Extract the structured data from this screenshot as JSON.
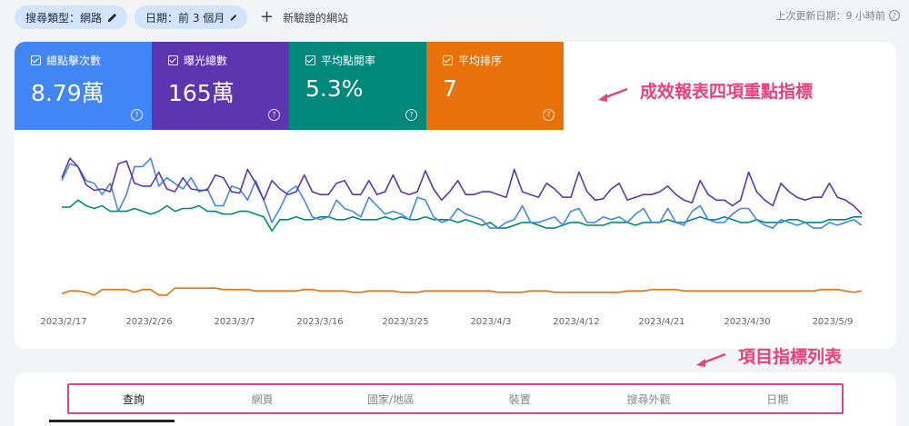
{
  "filters": {
    "search_type": "搜尋類型：網路",
    "date_range": "日期：前 3 個月",
    "add_filter": "新驗證的網站",
    "last_updated": "上次更新日期：9 小時前"
  },
  "metrics": [
    {
      "label": "總點擊次數",
      "value": "8.79萬",
      "color": "#4285f4"
    },
    {
      "label": "曝光總數",
      "value": "165萬",
      "color": "#5e35b1"
    },
    {
      "label": "平均點閱率",
      "value": "5.3%",
      "color": "#00897b"
    },
    {
      "label": "平均排序",
      "value": "7",
      "color": "#e8710a"
    }
  ],
  "annotations": {
    "metrics_note": "成效報表四項重點指標",
    "tabs_note": "項目指標列表"
  },
  "tabs": [
    "查詢",
    "網頁",
    "國家/地區",
    "裝置",
    "搜尋外觀",
    "日期"
  ],
  "active_tab": "查詢",
  "chart_data": {
    "type": "line",
    "x_tick_labels": [
      "2023/2/17",
      "2023/2/26",
      "2023/3/7",
      "2023/3/16",
      "2023/3/25",
      "2023/4/3",
      "2023/4/12",
      "2023/4/21",
      "2023/4/30",
      "2023/5/9"
    ],
    "grid": false,
    "series": [
      {
        "metric": "impressions",
        "color": "#5e35b1",
        "values": [
          72,
          86,
          80,
          67,
          63,
          64,
          62,
          82,
          84,
          68,
          66,
          66,
          76,
          64,
          62,
          72,
          64,
          63,
          63,
          74,
          72,
          62,
          61,
          78,
          68,
          56,
          70,
          64,
          60,
          62,
          74,
          62,
          60,
          60,
          68,
          70,
          60,
          60,
          70,
          60,
          62,
          74,
          62,
          60,
          62,
          77,
          64,
          56,
          62,
          70,
          60,
          60,
          62,
          62,
          60,
          58,
          78,
          62,
          60,
          58,
          68,
          64,
          58,
          58,
          76,
          62,
          56,
          57,
          64,
          68,
          56,
          58,
          60,
          60,
          62,
          66,
          60,
          56,
          54,
          70,
          60,
          56,
          56,
          52,
          56,
          76,
          62,
          56,
          52,
          68,
          62,
          58,
          56,
          58,
          58,
          68,
          58,
          56,
          52,
          46
        ]
      },
      {
        "metric": "clicks",
        "color": "#4285f4",
        "values": [
          70,
          82,
          80,
          70,
          68,
          60,
          68,
          48,
          60,
          80,
          80,
          86,
          66,
          72,
          68,
          64,
          72,
          62,
          64,
          52,
          52,
          66,
          64,
          56,
          70,
          56,
          40,
          50,
          62,
          66,
          56,
          44,
          42,
          44,
          56,
          50,
          48,
          44,
          58,
          52,
          46,
          48,
          46,
          42,
          58,
          56,
          44,
          40,
          42,
          50,
          46,
          44,
          42,
          36,
          36,
          40,
          42,
          52,
          40,
          40,
          42,
          44,
          38,
          48,
          50,
          40,
          40,
          44,
          42,
          44,
          40,
          46,
          50,
          40,
          40,
          50,
          40,
          38,
          48,
          52,
          42,
          40,
          40,
          46,
          50,
          50,
          42,
          38,
          36,
          42,
          40,
          38,
          40,
          36,
          36,
          40,
          38,
          40,
          42,
          38
        ]
      },
      {
        "metric": "ctr",
        "color": "#00897b",
        "values": [
          51,
          51,
          56,
          52,
          50,
          52,
          48,
          48,
          48,
          50,
          48,
          46,
          48,
          52,
          48,
          50,
          50,
          52,
          48,
          48,
          46,
          46,
          48,
          48,
          46,
          44,
          34,
          42,
          42,
          44,
          42,
          42,
          44,
          44,
          42,
          42,
          44,
          42,
          42,
          42,
          44,
          42,
          44,
          42,
          42,
          44,
          42,
          42,
          42,
          40,
          42,
          40,
          38,
          40,
          36,
          36,
          38,
          40,
          40,
          38,
          36,
          36,
          38,
          40,
          40,
          38,
          38,
          38,
          40,
          40,
          40,
          38,
          40,
          40,
          40,
          42,
          40,
          40,
          42,
          44,
          42,
          42,
          44,
          42,
          40,
          40,
          42,
          40,
          40,
          40,
          42,
          42,
          40,
          40,
          40,
          42,
          42,
          42,
          44,
          44
        ]
      },
      {
        "metric": "position",
        "color": "#e8710a",
        "values": [
          -11,
          -9,
          -9,
          -10,
          -12,
          -8,
          -8,
          -8,
          -8,
          -10,
          -8,
          -8,
          -12,
          -12,
          -7,
          -7,
          -7,
          -7,
          -7,
          -7,
          -8,
          -8,
          -8,
          -8,
          -9,
          -9,
          -9,
          -9,
          -9,
          -9,
          -8,
          -8,
          -9,
          -9,
          -9,
          -9,
          -10,
          -10,
          -9,
          -9,
          -9,
          -9,
          -10,
          -10,
          -10,
          -9,
          -9,
          -9,
          -9,
          -9,
          -9,
          -9,
          -9,
          -9,
          -10,
          -10,
          -10,
          -10,
          -9,
          -9,
          -9,
          -10,
          -10,
          -10,
          -10,
          -10,
          -10,
          -10,
          -10,
          -10,
          -9,
          -9,
          -9,
          -8,
          -8,
          -8,
          -8,
          -9,
          -9,
          -9,
          -9,
          -9,
          -9,
          -9,
          -9,
          -9,
          -9,
          -9,
          -9,
          -9,
          -9,
          -9,
          -9,
          -9,
          -8,
          -8,
          -8,
          -9,
          -10,
          -9
        ]
      }
    ]
  }
}
